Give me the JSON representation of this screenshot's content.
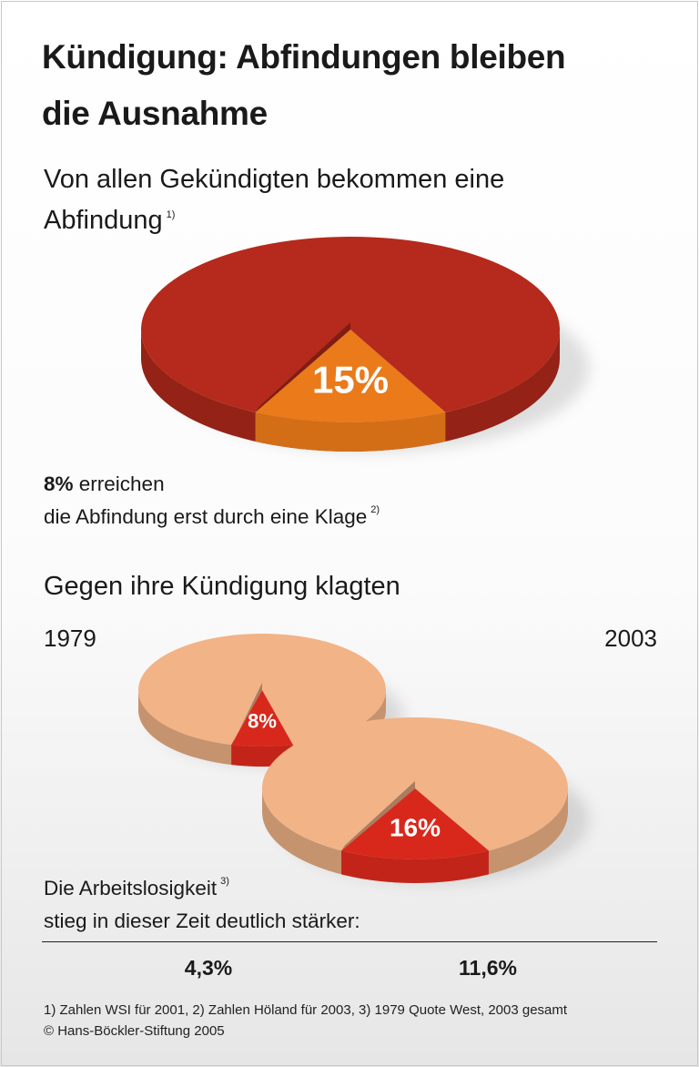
{
  "title": {
    "line1": "Kündigung: Abfindungen bleiben",
    "line2": "die Ausnahme"
  },
  "section1": {
    "heading_line1": "Von allen Gekündigten bekommen eine",
    "heading_line2": "Abfindung",
    "heading_note": "1)",
    "note_bold": "8%",
    "note_rest": " erreichen",
    "note_line2": "die Abfindung erst durch eine Klage",
    "note_ref": "2)"
  },
  "section2": {
    "heading": "Gegen ihre Kündigung klagten",
    "year_left": "1979",
    "year_right": "2003"
  },
  "section3": {
    "line1": "Die Arbeitslosigkeit",
    "line1_ref": "3)",
    "line2": "stieg in dieser Zeit deutlich stärker:",
    "value_1979": "4,3%",
    "value_2003": "11,6%"
  },
  "footnotes": {
    "line1": "1) Zahlen WSI für 2001, 2) Zahlen Höland für 2003, 3) 1979 Quote West, 2003 gesamt",
    "line2": "© Hans-Böckler-Stiftung 2005"
  },
  "chart_data": [
    {
      "type": "pie",
      "style": "3d",
      "label": "Abfindung",
      "slice_value": 15,
      "slice_label": "15%",
      "colors": {
        "rest": "#b52a1c",
        "slice": "#ea7a1a"
      }
    },
    {
      "type": "pie",
      "style": "3d",
      "label": "1979",
      "slice_value": 8,
      "slice_label": "8%",
      "colors": {
        "rest": "#f2b387",
        "slice": "#d8281c"
      }
    },
    {
      "type": "pie",
      "style": "3d",
      "label": "2003",
      "slice_value": 16,
      "slice_label": "16%",
      "colors": {
        "rest": "#f2b387",
        "slice": "#d8281c"
      }
    }
  ]
}
